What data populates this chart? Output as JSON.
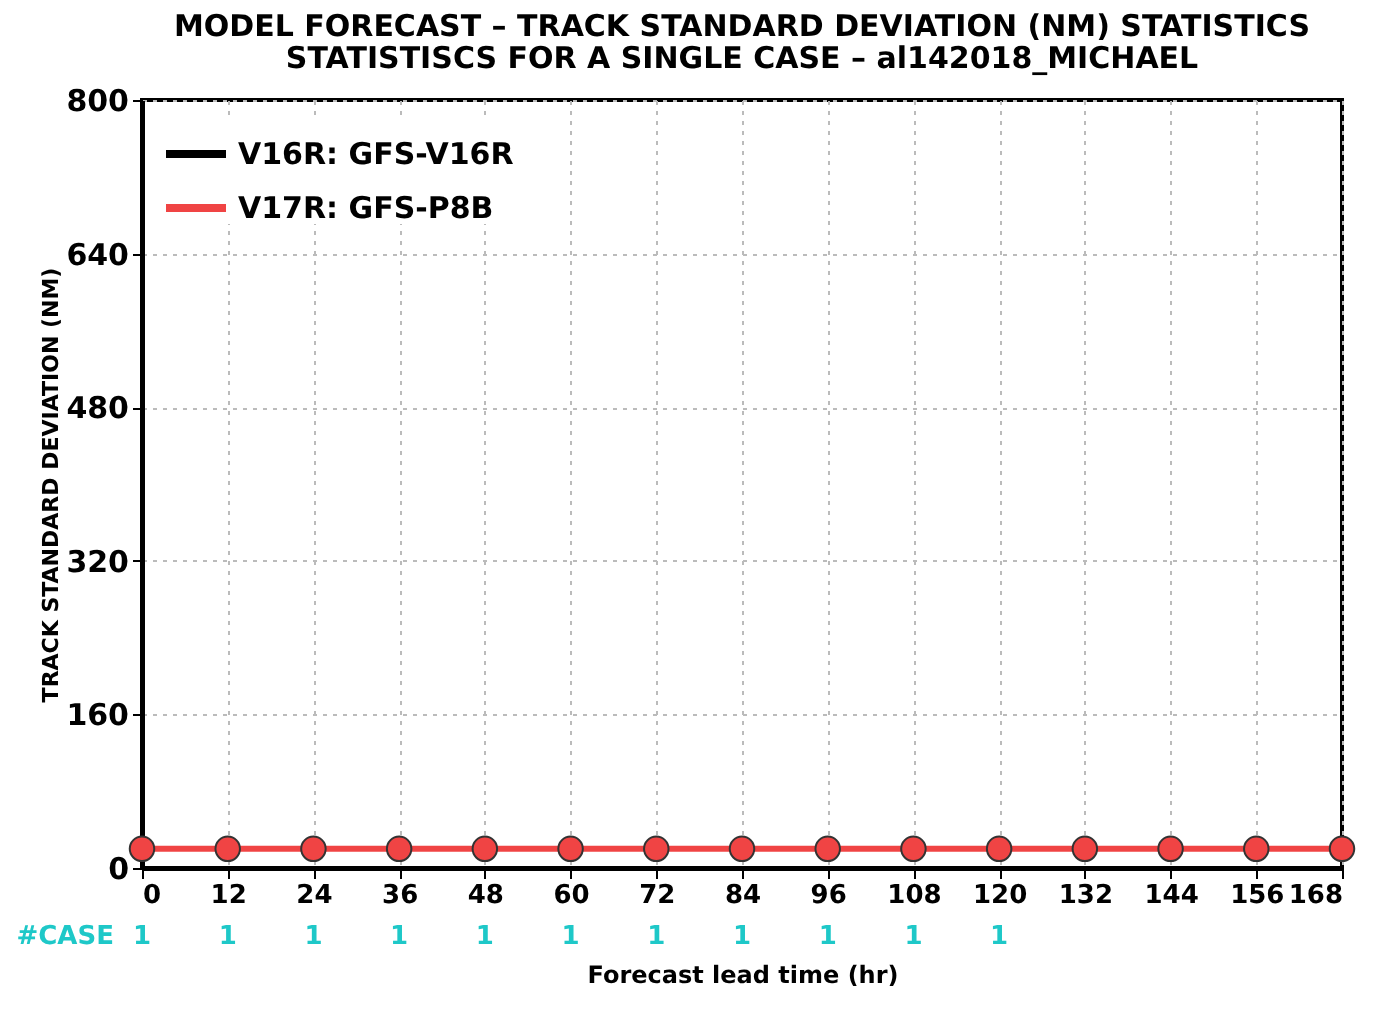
{
  "chart_data": {
    "type": "line",
    "title": "MODEL FORECAST – TRACK STANDARD DEVIATION (NM) STATISTICS",
    "subtitle": "STATISTISCS FOR A SINGLE CASE – al142018_MICHAEL",
    "xlabel": "Forecast lead time (hr)",
    "ylabel": "TRACK STANDARD DEVIATION (NM)",
    "x": [
      0,
      12,
      24,
      36,
      48,
      60,
      72,
      84,
      96,
      108,
      120,
      132,
      144,
      156,
      168
    ],
    "series": [
      {
        "name": "V16R: GFS-V16R",
        "color": "#000000",
        "values": [
          null,
          null,
          null,
          null,
          null,
          null,
          null,
          null,
          null,
          null,
          null,
          null,
          null,
          null,
          null
        ]
      },
      {
        "name": "V17R: GFS-P8B",
        "color": "#f04444",
        "values": [
          20,
          20,
          20,
          20,
          20,
          20,
          20,
          20,
          20,
          20,
          20,
          20,
          20,
          20,
          20
        ]
      }
    ],
    "xlim": [
      0,
      168
    ],
    "xticks": [
      0,
      12,
      24,
      36,
      48,
      60,
      72,
      84,
      96,
      108,
      120,
      132,
      144,
      156,
      168
    ],
    "ylim": [
      0,
      800
    ],
    "yticks": [
      0,
      160,
      320,
      480,
      640,
      800
    ],
    "grid": true,
    "legend": "top left",
    "marker": "circle",
    "line_style": "solid",
    "annotations": [
      "#CASE",
      "1",
      "1",
      "1",
      "1",
      "1",
      "1",
      "1",
      "1",
      "1",
      "1",
      "1"
    ]
  }
}
